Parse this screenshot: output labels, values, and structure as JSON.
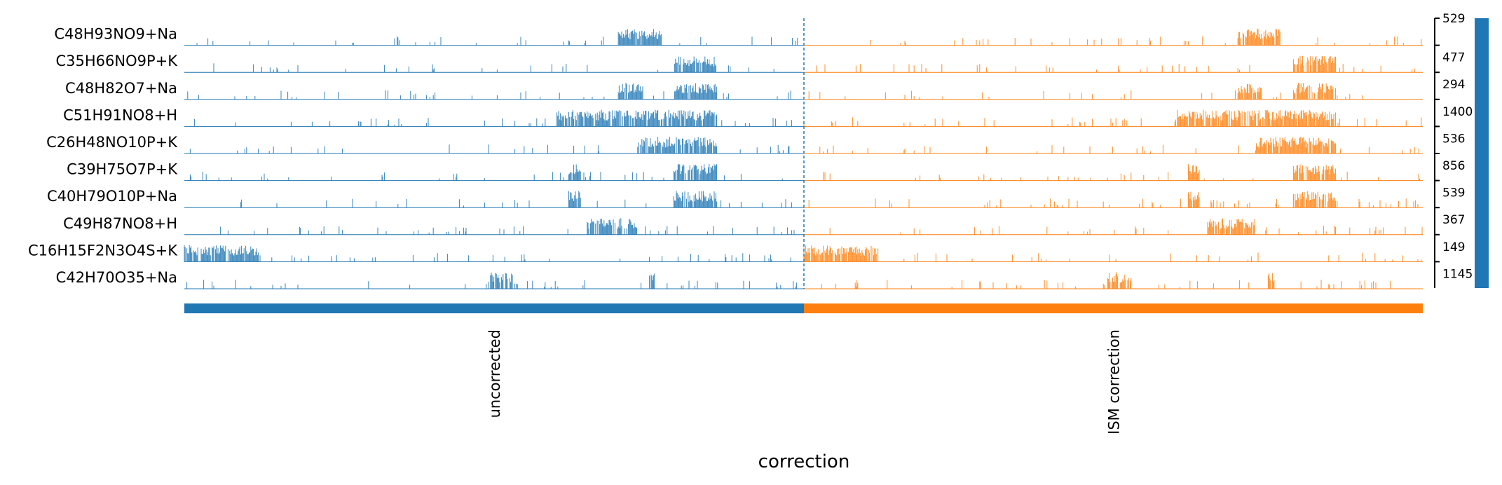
{
  "chart_data": {
    "type": "track-plot",
    "xlabel": "correction",
    "groups": [
      {
        "name": "uncorrected",
        "color": "#1f77b4"
      },
      {
        "name": "ISM correction",
        "color": "#ff7f0e"
      }
    ],
    "series": [
      {
        "name": "C48H93NO9+Na",
        "max": 529
      },
      {
        "name": "C35H66NO9P+K",
        "max": 477
      },
      {
        "name": "C48H82O7+Na",
        "max": 294
      },
      {
        "name": "C51H91NO8+H",
        "max": 1400
      },
      {
        "name": "C26H48NO10P+K",
        "max": 536
      },
      {
        "name": "C39H75O7P+K",
        "max": 856
      },
      {
        "name": "C40H79O10P+Na",
        "max": 539
      },
      {
        "name": "C49H87NO8+H",
        "max": 367
      },
      {
        "name": "C16H15F2N3O4S+K",
        "max": 149
      },
      {
        "name": "C42H70O35+Na",
        "max": 1145
      }
    ],
    "tick_labels": [
      "529",
      "477",
      "294",
      "1400",
      "536",
      "856",
      "539",
      "367",
      "149",
      "1145"
    ],
    "colorbar_color": "#1f77b4",
    "divider_style": "dashed"
  }
}
